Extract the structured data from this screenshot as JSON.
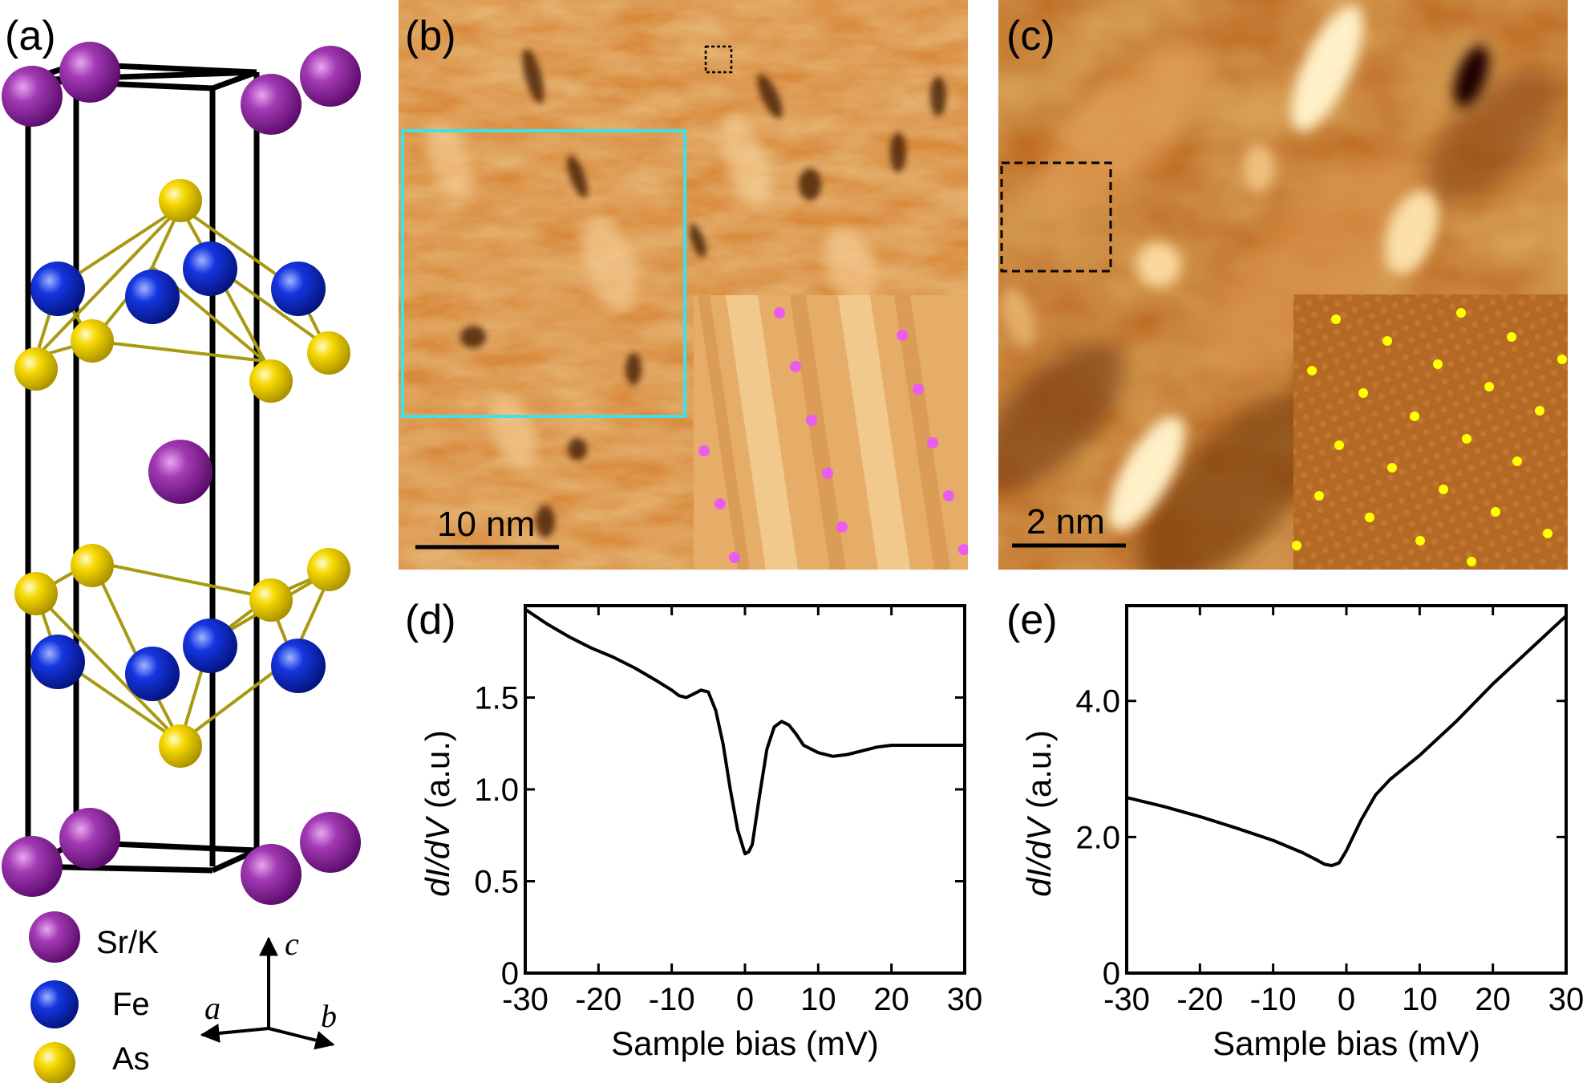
{
  "panels": {
    "a": {
      "label": "(a)",
      "legend": [
        {
          "name": "Sr/K",
          "color": "#8e1ea0"
        },
        {
          "name": "Fe",
          "color": "#0a2dd8"
        },
        {
          "name": "As",
          "color": "#f2d000"
        }
      ],
      "axes": {
        "a": "a",
        "b": "b",
        "c": "c"
      }
    },
    "b": {
      "label": "(b)",
      "scalebar": "10 nm",
      "box_color": "#3fe0e8",
      "inset_dot_color": "#ea5cf0"
    },
    "c": {
      "label": "(c)",
      "scalebar": "2 nm",
      "inset_dot_color": "#ffff00"
    },
    "d": {
      "label": "(d)"
    },
    "e": {
      "label": "(e)"
    }
  },
  "chart_data": [
    {
      "id": "d",
      "type": "line",
      "title": "",
      "xlabel": "Sample bias (mV)",
      "ylabel": "dI/dV (a.u.)",
      "xlim": [
        -30,
        30
      ],
      "ylim": [
        0,
        2.0
      ],
      "xticks": [
        -30,
        -20,
        -10,
        0,
        10,
        20,
        30
      ],
      "xtick_labels": [
        "-30",
        "-20",
        "-10",
        "0",
        "10",
        "20",
        "30"
      ],
      "yticks": [
        0,
        0.5,
        1.0,
        1.5
      ],
      "ytick_labels": [
        "0",
        "0.5",
        "1.0",
        "1.5"
      ],
      "series": [
        {
          "name": "spectrum",
          "x": [
            -30,
            -27,
            -24,
            -21,
            -18,
            -15,
            -12,
            -10,
            -9,
            -8,
            -7,
            -6,
            -5,
            -4,
            -3,
            -2,
            -1,
            0,
            0.5,
            1,
            2,
            3,
            4,
            5,
            6,
            7,
            8,
            10,
            12,
            14,
            16,
            18,
            20,
            22,
            25,
            28,
            30
          ],
          "y": [
            1.98,
            1.9,
            1.83,
            1.77,
            1.72,
            1.66,
            1.59,
            1.54,
            1.51,
            1.5,
            1.52,
            1.54,
            1.53,
            1.43,
            1.25,
            1.0,
            0.78,
            0.65,
            0.66,
            0.7,
            0.97,
            1.22,
            1.34,
            1.37,
            1.35,
            1.3,
            1.24,
            1.2,
            1.18,
            1.19,
            1.21,
            1.23,
            1.24,
            1.24,
            1.24,
            1.24,
            1.24
          ]
        }
      ]
    },
    {
      "id": "e",
      "type": "line",
      "title": "",
      "xlabel": "Sample bias (mV)",
      "ylabel": "dI/dV (a.u.)",
      "xlim": [
        -30,
        30
      ],
      "ylim": [
        0,
        5.4
      ],
      "xticks": [
        -30,
        -20,
        -10,
        0,
        10,
        20,
        30
      ],
      "xtick_labels": [
        "-30",
        "-20",
        "-10",
        "0",
        "10",
        "20",
        "30"
      ],
      "yticks": [
        0,
        2.0,
        4.0
      ],
      "ytick_labels": [
        "0",
        "2.0",
        "4.0"
      ],
      "series": [
        {
          "name": "spectrum",
          "x": [
            -30,
            -25,
            -20,
            -15,
            -10,
            -6,
            -4,
            -3,
            -2,
            -1,
            0,
            2,
            4,
            6,
            10,
            15,
            20,
            25,
            30
          ],
          "y": [
            2.58,
            2.45,
            2.3,
            2.13,
            1.95,
            1.77,
            1.66,
            1.6,
            1.58,
            1.62,
            1.8,
            2.25,
            2.62,
            2.85,
            3.2,
            3.7,
            4.25,
            4.75,
            5.25
          ]
        }
      ]
    }
  ]
}
